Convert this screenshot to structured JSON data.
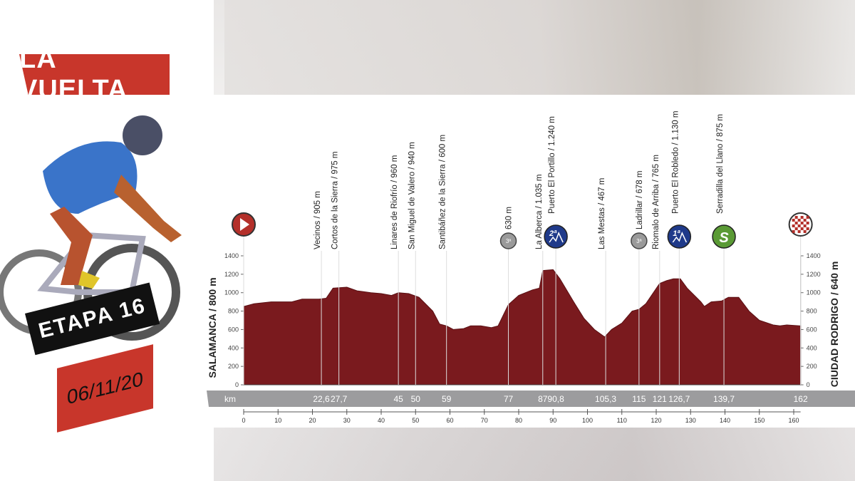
{
  "brand": {
    "logo_text": "LA VUELTA",
    "stage": "ETAPA 16",
    "date": "06/11/20",
    "colors": {
      "brand_red": "#c8362b",
      "profile": "#7a1a1e",
      "cat2": "#1f3a8a",
      "sprint": "#5a9a35",
      "cat3": "#9a9a9a"
    }
  },
  "chart_data": {
    "type": "area",
    "title": "",
    "start_label": "SALAMANCA / 800 m",
    "finish_label": "CIUDAD RODRIGO / 640 m",
    "x_unit_label": "km",
    "xlim": [
      0,
      162
    ],
    "ylim": [
      0,
      1400
    ],
    "y_ticks": [
      0,
      200,
      400,
      600,
      800,
      1000,
      1200,
      1400
    ],
    "x_ticks": [
      0,
      10,
      20,
      30,
      40,
      50,
      60,
      70,
      80,
      90,
      100,
      110,
      120,
      130,
      140,
      150,
      160
    ],
    "profile": [
      [
        0,
        850
      ],
      [
        3,
        880
      ],
      [
        8,
        900
      ],
      [
        14,
        900
      ],
      [
        17,
        930
      ],
      [
        22,
        930
      ],
      [
        24,
        940
      ],
      [
        26,
        1050
      ],
      [
        30,
        1060
      ],
      [
        33,
        1020
      ],
      [
        37,
        1000
      ],
      [
        40,
        990
      ],
      [
        43,
        970
      ],
      [
        45,
        1000
      ],
      [
        48,
        990
      ],
      [
        51,
        950
      ],
      [
        55,
        800
      ],
      [
        57,
        660
      ],
      [
        59,
        640
      ],
      [
        61,
        600
      ],
      [
        64,
        610
      ],
      [
        66,
        640
      ],
      [
        69,
        640
      ],
      [
        72,
        620
      ],
      [
        74,
        640
      ],
      [
        77,
        870
      ],
      [
        80,
        970
      ],
      [
        84,
        1030
      ],
      [
        86,
        1050
      ],
      [
        87,
        1240
      ],
      [
        90,
        1250
      ],
      [
        92,
        1150
      ],
      [
        96,
        900
      ],
      [
        99,
        720
      ],
      [
        102,
        600
      ],
      [
        105,
        520
      ],
      [
        107,
        600
      ],
      [
        110,
        670
      ],
      [
        113,
        800
      ],
      [
        115,
        820
      ],
      [
        117,
        880
      ],
      [
        121,
        1100
      ],
      [
        123,
        1130
      ],
      [
        125,
        1150
      ],
      [
        127,
        1150
      ],
      [
        129,
        1050
      ],
      [
        133,
        900
      ],
      [
        134,
        850
      ],
      [
        136,
        900
      ],
      [
        139,
        910
      ],
      [
        141,
        950
      ],
      [
        144,
        950
      ],
      [
        147,
        800
      ],
      [
        150,
        700
      ],
      [
        154,
        650
      ],
      [
        156,
        640
      ],
      [
        158,
        650
      ],
      [
        162,
        640
      ]
    ],
    "waypoints": [
      {
        "km": 0,
        "km_label": "",
        "label": "",
        "icon": "start"
      },
      {
        "km": 22.6,
        "km_label": "22,6",
        "label": "Vecinos / 905 m",
        "icon": ""
      },
      {
        "km": 27.7,
        "km_label": "27,7",
        "label": "Cortos de la Sierra / 975 m",
        "icon": ""
      },
      {
        "km": 45,
        "km_label": "45",
        "label": "Linares de Riofrío / 960 m",
        "icon": ""
      },
      {
        "km": 50,
        "km_label": "50",
        "label": "San Miguel de Valero / 940 m",
        "icon": ""
      },
      {
        "km": 59,
        "km_label": "59",
        "label": "Santibáñez de la Sierra / 600 m",
        "icon": ""
      },
      {
        "km": 77,
        "km_label": "77",
        "label": "630 m",
        "icon": "cat3"
      },
      {
        "km": 87,
        "km_label": "87",
        "label": "La Alberca / 1.035 m",
        "icon": ""
      },
      {
        "km": 90.8,
        "km_label": "90,8",
        "label": "Puerto El Portillo / 1.240 m",
        "icon": "cat2",
        "icon_text": "2ª"
      },
      {
        "km": 105.3,
        "km_label": "105,3",
        "label": "Las Mestas / 467 m",
        "icon": ""
      },
      {
        "km": 115,
        "km_label": "115",
        "label": "Ladrillar / 678 m",
        "icon": "cat3"
      },
      {
        "km": 121,
        "km_label": "121",
        "label": "Riomalo de Arriba / 765 m",
        "icon": ""
      },
      {
        "km": 126.7,
        "km_label": "126,7",
        "label": "Puerto El Robledo / 1.130 m",
        "icon": "cat1",
        "icon_text": "1ª"
      },
      {
        "km": 139.7,
        "km_label": "139,7",
        "label": "Serradilla del Llano / 875 m",
        "icon": "sprint",
        "icon_text": "S"
      },
      {
        "km": 162,
        "km_label": "162",
        "label": "",
        "icon": "finish"
      }
    ]
  }
}
